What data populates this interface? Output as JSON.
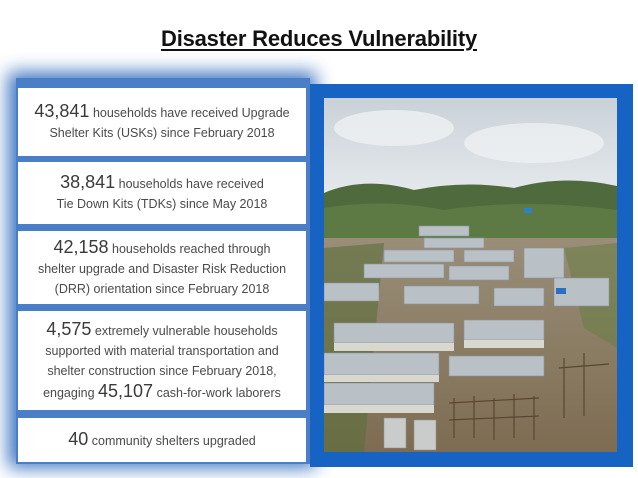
{
  "slide": {
    "title": "Disaster Reduces Vulnerability"
  },
  "stats": [
    {
      "number": "43,841",
      "line1": "households have received Upgrade",
      "line2": "Shelter Kits (USKs) since February 2018"
    },
    {
      "number": "38,841",
      "line1": "households have received",
      "line2": "Tie Down Kits (TDKs) since May 2018"
    },
    {
      "number": "42,158",
      "line1": "households reached through",
      "line2": "shelter upgrade and Disaster Risk Reduction",
      "line3": "(DRR) orientation since February 2018"
    },
    {
      "number": "4,575",
      "line1": "extremely vulnerable households",
      "line2": "supported with material transportation and",
      "line3": "shelter construction since February 2018,",
      "line4_pre": "engaging",
      "number2": "45,107",
      "line4_post": "cash-for-work laborers"
    },
    {
      "number": "40",
      "line1": "community shelters upgraded"
    }
  ],
  "colors": {
    "panel_blue": "#4a7fc8",
    "frame_blue": "#1763c4",
    "text_gray": "#4a4a4a"
  }
}
